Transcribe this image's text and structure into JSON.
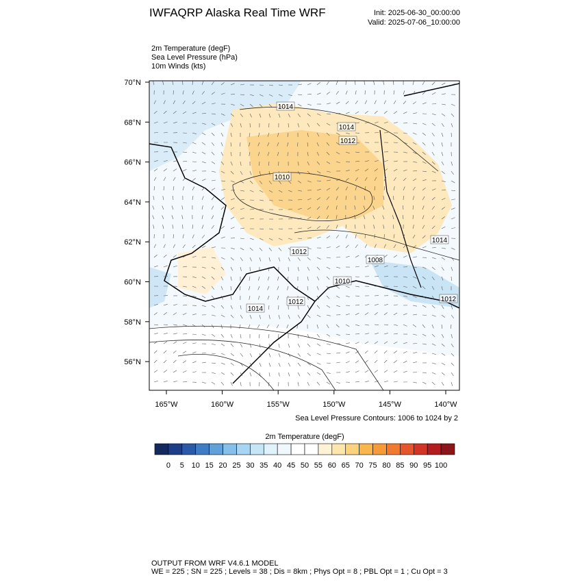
{
  "header": {
    "title": "IWFAQRP Alaska Real Time WRF",
    "init": "Init: 2025-06-30_00:00:00",
    "valid": "Valid: 2025-07-06_10:00:00"
  },
  "fields": [
    "2m Temperature   (degF)",
    "Sea Level Pressure   (hPa)",
    "10m Winds   (kts)"
  ],
  "map": {
    "lat_ticks": [
      {
        "value": 70,
        "label": "70°N"
      },
      {
        "value": 68,
        "label": "68°N"
      },
      {
        "value": 66,
        "label": "66°N"
      },
      {
        "value": 64,
        "label": "64°N"
      },
      {
        "value": 62,
        "label": "62°N"
      },
      {
        "value": 60,
        "label": "60°N"
      },
      {
        "value": 58,
        "label": "58°N"
      },
      {
        "value": 56,
        "label": "56°N"
      }
    ],
    "lon_ticks": [
      {
        "value": -165,
        "label": "165°W"
      },
      {
        "value": -160,
        "label": "160°W"
      },
      {
        "value": -155,
        "label": "155°W"
      },
      {
        "value": -150,
        "label": "150°W"
      },
      {
        "value": -145,
        "label": "145°W"
      },
      {
        "value": -140,
        "label": "140°W"
      }
    ],
    "contour_labels": [
      1014,
      1014,
      1012,
      1010,
      1014,
      1012,
      1008,
      1010,
      1014,
      1012,
      1012
    ],
    "contour_note": "Sea Level Pressure Contours: 1006 to 1024 by 2"
  },
  "colorbar": {
    "title": "2m Temperature  (degF)",
    "ticks": [
      0,
      5,
      10,
      15,
      20,
      25,
      30,
      35,
      40,
      45,
      50,
      55,
      60,
      65,
      70,
      75,
      80,
      85,
      90,
      95,
      100
    ],
    "colors": [
      "#152a5c",
      "#1e3f87",
      "#2a5aa8",
      "#3f7cc4",
      "#61a0d8",
      "#86bfe8",
      "#a8d6f2",
      "#c6e6f7",
      "#e0f2fb",
      "#f0f8fd",
      "#ffffff",
      "#ffffff",
      "#fff3d6",
      "#fde6ac",
      "#fbd27e",
      "#f9b64f",
      "#f59b38",
      "#ef7a30",
      "#e5562b",
      "#d23426",
      "#b31d20",
      "#8c1519"
    ]
  },
  "footer": {
    "line1": "OUTPUT FROM WRF V4.6.1 MODEL",
    "line2": "WE = 225 ; SN = 225 ; Levels = 38 ; Dis = 8km ; Phys Opt = 8 ; PBL Opt = 1 ; Cu Opt = 3"
  }
}
